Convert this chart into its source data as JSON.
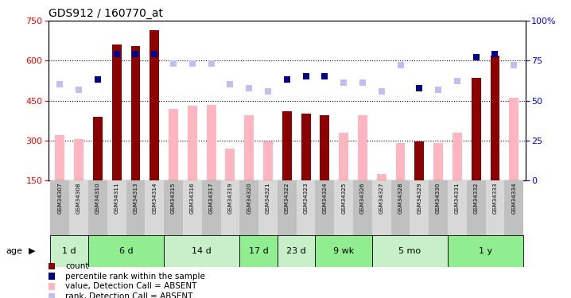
{
  "title": "GDS912 / 160770_at",
  "samples": [
    "GSM34307",
    "GSM34308",
    "GSM34310",
    "GSM34311",
    "GSM34313",
    "GSM34314",
    "GSM34315",
    "GSM34316",
    "GSM34317",
    "GSM34319",
    "GSM34320",
    "GSM34321",
    "GSM34322",
    "GSM34323",
    "GSM34324",
    "GSM34325",
    "GSM34326",
    "GSM34327",
    "GSM34328",
    "GSM34329",
    "GSM34330",
    "GSM34331",
    "GSM34332",
    "GSM34333",
    "GSM34334"
  ],
  "present": [
    false,
    false,
    true,
    true,
    true,
    true,
    false,
    false,
    false,
    false,
    false,
    false,
    true,
    true,
    true,
    false,
    false,
    false,
    false,
    true,
    false,
    false,
    true,
    true,
    false
  ],
  "bar_values": [
    320,
    305,
    390,
    660,
    655,
    715,
    420,
    430,
    435,
    270,
    395,
    295,
    410,
    400,
    395,
    330,
    395,
    175,
    290,
    295,
    290,
    330,
    535,
    620,
    460
  ],
  "rank_values_pct": [
    60,
    57,
    63,
    79,
    79,
    79,
    73,
    73,
    73,
    60,
    58,
    56,
    63,
    65,
    65,
    61,
    61,
    56,
    72,
    58,
    57,
    62,
    77,
    79,
    72
  ],
  "ylim_left": [
    150,
    750
  ],
  "ylim_right": [
    0,
    100
  ],
  "left_ticks": [
    150,
    300,
    450,
    600,
    750
  ],
  "right_ticks": [
    0,
    25,
    50,
    75,
    100
  ],
  "hlines": [
    300,
    450,
    600
  ],
  "age_groups": [
    {
      "label": "1 d",
      "samples": [
        "GSM34307",
        "GSM34308"
      ]
    },
    {
      "label": "6 d",
      "samples": [
        "GSM34310",
        "GSM34311",
        "GSM34313",
        "GSM34314"
      ]
    },
    {
      "label": "14 d",
      "samples": [
        "GSM34315",
        "GSM34316",
        "GSM34317",
        "GSM34319"
      ]
    },
    {
      "label": "17 d",
      "samples": [
        "GSM34320",
        "GSM34321"
      ]
    },
    {
      "label": "23 d",
      "samples": [
        "GSM34322",
        "GSM34323"
      ]
    },
    {
      "label": "9 wk",
      "samples": [
        "GSM34324",
        "GSM34325",
        "GSM34326"
      ]
    },
    {
      "label": "5 mo",
      "samples": [
        "GSM34327",
        "GSM34328",
        "GSM34329",
        "GSM34330"
      ]
    },
    {
      "label": "1 y",
      "samples": [
        "GSM34331",
        "GSM34332",
        "GSM34333",
        "GSM34334"
      ]
    }
  ],
  "color_present_bar": "#8B0000",
  "color_absent_bar": "#FFB6C1",
  "color_present_rank": "#00008B",
  "color_absent_rank": "#C0C0F0",
  "color_age_light": "#C8F0C8",
  "color_age_dark": "#90EE90",
  "color_sample_light": "#D8D8D8",
  "color_sample_dark": "#C0C0C0",
  "legend": [
    {
      "label": "count",
      "color": "#8B0000"
    },
    {
      "label": "percentile rank within the sample",
      "color": "#00008B"
    },
    {
      "label": "value, Detection Call = ABSENT",
      "color": "#FFB6C1"
    },
    {
      "label": "rank, Detection Call = ABSENT",
      "color": "#C0C0F0"
    }
  ]
}
